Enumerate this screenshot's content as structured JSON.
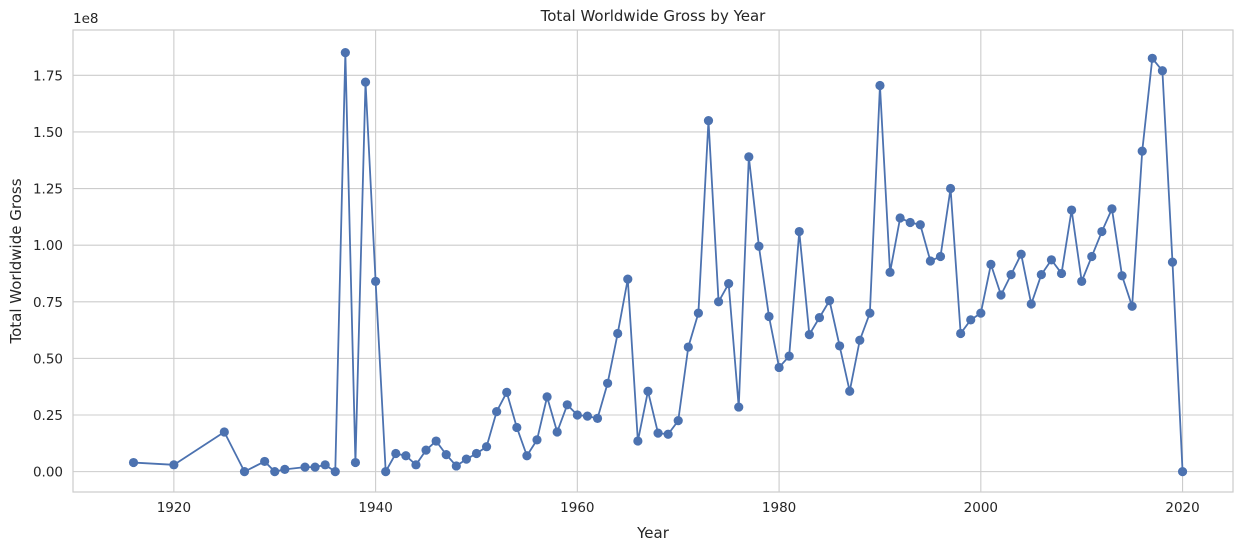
{
  "chart_data": {
    "type": "line",
    "title": "Total Worldwide Gross by Year",
    "xlabel": "Year",
    "ylabel": "Total Worldwide Gross",
    "y_offset_label": "1e8",
    "xlim": [
      1910,
      2025
    ],
    "ylim": [
      -9000000,
      195000000
    ],
    "x_ticks": [
      1920,
      1940,
      1960,
      1980,
      2000,
      2020
    ],
    "x_tick_labels": [
      "1920",
      "1940",
      "1960",
      "1980",
      "2000",
      "2020"
    ],
    "y_ticks": [
      0,
      25000000,
      50000000,
      75000000,
      100000000,
      125000000,
      150000000,
      175000000
    ],
    "y_tick_labels": [
      "0.00",
      "0.25",
      "0.50",
      "0.75",
      "1.00",
      "1.25",
      "1.50",
      "1.75"
    ],
    "grid": true,
    "legend": "none",
    "marker": "circle",
    "color": "#4c72b0",
    "series": [
      {
        "x": [
          1916,
          1920,
          1925,
          1927,
          1929,
          1930,
          1931,
          1933,
          1934,
          1935,
          1936,
          1937,
          1938,
          1939,
          1940,
          1941,
          1942,
          1943,
          1944,
          1945,
          1946,
          1947,
          1948,
          1949,
          1950,
          1951,
          1952,
          1953,
          1954,
          1955,
          1956,
          1957,
          1958,
          1959,
          1960,
          1961,
          1962,
          1963,
          1964,
          1965,
          1966,
          1967,
          1968,
          1969,
          1970,
          1971,
          1972,
          1973,
          1974,
          1975,
          1976,
          1977,
          1978,
          1979,
          1980,
          1981,
          1982,
          1983,
          1984,
          1985,
          1986,
          1987,
          1988,
          1989,
          1990,
          1991,
          1992,
          1993,
          1994,
          1995,
          1996,
          1997,
          1998,
          1999,
          2000,
          2001,
          2002,
          2003,
          2004,
          2005,
          2006,
          2007,
          2008,
          2009,
          2010,
          2011,
          2012,
          2013,
          2014,
          2015,
          2016,
          2017,
          2018,
          2019,
          2020
        ],
        "y": [
          4000000,
          3000000,
          17500000,
          0,
          4500000,
          0,
          1000000,
          2000000,
          2000000,
          3000000,
          0,
          185000000,
          4000000,
          172000000,
          84000000,
          0,
          8000000,
          7000000,
          3000000,
          9500000,
          13500000,
          7500000,
          2500000,
          5500000,
          8000000,
          11000000,
          26500000,
          35000000,
          19500000,
          7000000,
          14000000,
          33000000,
          17500000,
          29500000,
          25000000,
          24500000,
          23500000,
          39000000,
          61000000,
          85000000,
          13500000,
          35500000,
          17000000,
          16500000,
          22500000,
          55000000,
          70000000,
          155000000,
          75000000,
          83000000,
          28500000,
          139000000,
          99500000,
          68500000,
          46000000,
          51000000,
          106000000,
          60500000,
          68000000,
          75500000,
          55500000,
          35500000,
          58000000,
          70000000,
          170500000,
          88000000,
          112000000,
          110000000,
          109000000,
          93000000,
          95000000,
          125000000,
          61000000,
          67000000,
          70000000,
          91500000,
          78000000,
          87000000,
          96000000,
          74000000,
          87000000,
          93500000,
          87500000,
          115500000,
          84000000,
          95000000,
          106000000,
          116000000,
          86500000,
          73000000,
          141500000,
          182500000,
          177000000,
          92500000,
          0
        ]
      }
    ]
  }
}
